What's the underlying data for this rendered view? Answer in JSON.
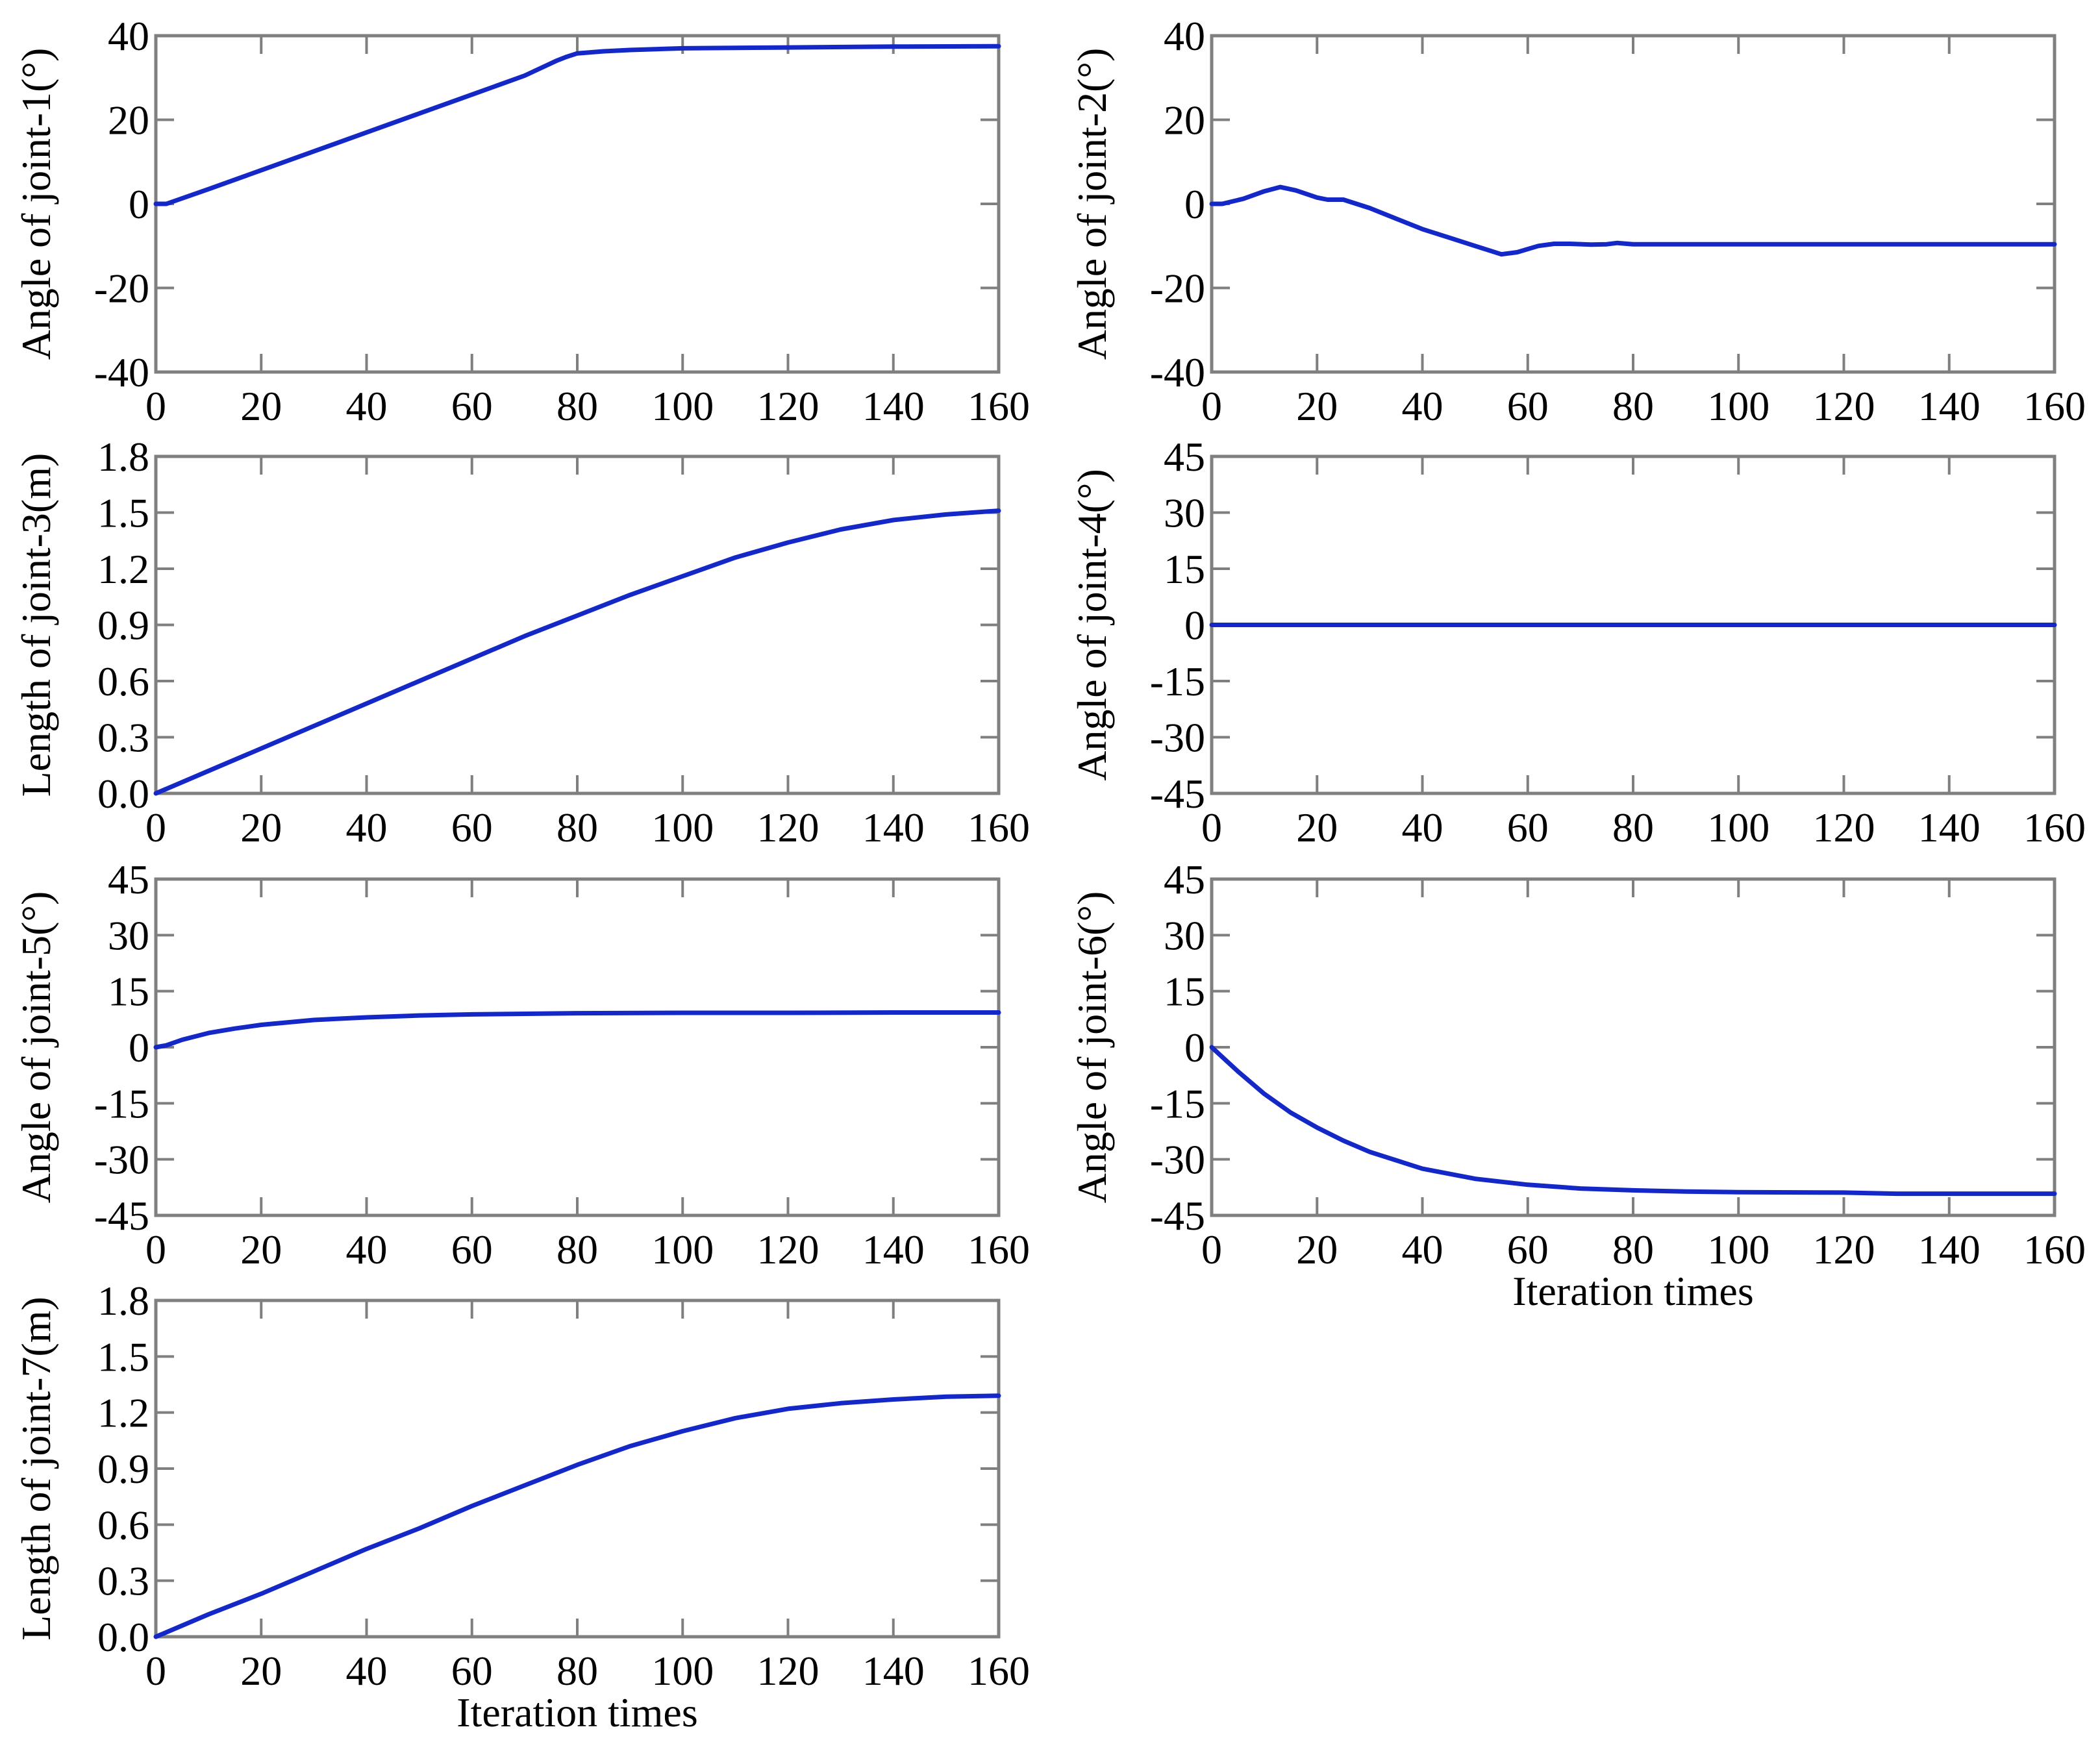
{
  "chart_data": [
    {
      "id": "joint-1",
      "type": "line",
      "ylabel": "Angle of joint-1(°)",
      "xlabel": "",
      "xlim": [
        0,
        160
      ],
      "ylim": [
        -40,
        40
      ],
      "xticks": [
        "0",
        "20",
        "40",
        "60",
        "80",
        "100",
        "120",
        "140",
        "160"
      ],
      "yticks": [
        "-40",
        "-20",
        "0",
        "20",
        "40"
      ],
      "color": "#1428c8",
      "series": [
        {
          "name": "joint-1",
          "x": [
            0,
            2,
            10,
            20,
            30,
            40,
            50,
            60,
            70,
            76,
            78,
            80,
            85,
            90,
            100,
            120,
            140,
            160
          ],
          "y": [
            0,
            0,
            3.5,
            8,
            12.5,
            17,
            21.5,
            26,
            30.5,
            34,
            35,
            35.8,
            36.3,
            36.6,
            37,
            37.2,
            37.4,
            37.5
          ]
        }
      ]
    },
    {
      "id": "joint-2",
      "type": "line",
      "ylabel": "Angle of joint-2(°)",
      "xlabel": "",
      "xlim": [
        0,
        160
      ],
      "ylim": [
        -40,
        40
      ],
      "xticks": [
        "0",
        "20",
        "40",
        "60",
        "80",
        "100",
        "120",
        "140",
        "160"
      ],
      "yticks": [
        "-40",
        "-20",
        "0",
        "20",
        "40"
      ],
      "color": "#1428c8",
      "series": [
        {
          "name": "joint-2",
          "x": [
            0,
            2,
            6,
            10,
            13,
            16,
            20,
            22,
            25,
            30,
            35,
            40,
            45,
            50,
            55,
            58,
            62,
            65,
            68,
            72,
            75,
            77,
            80,
            100,
            120,
            140,
            160
          ],
          "y": [
            0,
            0,
            1.2,
            3,
            4,
            3.2,
            1.5,
            1,
            1,
            -1,
            -3.5,
            -6,
            -8,
            -10,
            -12,
            -11.5,
            -10,
            -9.5,
            -9.5,
            -9.7,
            -9.6,
            -9.3,
            -9.6,
            -9.6,
            -9.6,
            -9.6,
            -9.6
          ]
        }
      ]
    },
    {
      "id": "joint-3",
      "type": "line",
      "ylabel": "Length of joint-3(m)",
      "xlabel": "",
      "xlim": [
        0,
        160
      ],
      "ylim": [
        0.0,
        1.8
      ],
      "xticks": [
        "0",
        "20",
        "40",
        "60",
        "80",
        "100",
        "120",
        "140",
        "160"
      ],
      "yticks": [
        "0.0",
        "0.3",
        "0.6",
        "0.9",
        "1.2",
        "1.5",
        "1.8"
      ],
      "color": "#1428c8",
      "series": [
        {
          "name": "joint-3",
          "x": [
            0,
            10,
            20,
            30,
            40,
            50,
            60,
            70,
            80,
            90,
            100,
            110,
            120,
            130,
            140,
            150,
            160
          ],
          "y": [
            0,
            0.12,
            0.24,
            0.36,
            0.48,
            0.6,
            0.72,
            0.84,
            0.95,
            1.06,
            1.16,
            1.26,
            1.34,
            1.41,
            1.46,
            1.49,
            1.51
          ]
        }
      ]
    },
    {
      "id": "joint-4",
      "type": "line",
      "ylabel": "Angle of joint-4(°)",
      "xlabel": "",
      "xlim": [
        0,
        160
      ],
      "ylim": [
        -45,
        45
      ],
      "xticks": [
        "0",
        "20",
        "40",
        "60",
        "80",
        "100",
        "120",
        "140",
        "160"
      ],
      "yticks": [
        "-45",
        "-30",
        "-15",
        "0",
        "15",
        "30",
        "45"
      ],
      "color": "#1428c8",
      "series": [
        {
          "name": "joint-4",
          "x": [
            0,
            160
          ],
          "y": [
            0,
            0
          ]
        }
      ]
    },
    {
      "id": "joint-5",
      "type": "line",
      "ylabel": "Angle of joint-5(°)",
      "xlabel": "",
      "xlim": [
        0,
        160
      ],
      "ylim": [
        -45,
        45
      ],
      "xticks": [
        "0",
        "20",
        "40",
        "60",
        "80",
        "100",
        "120",
        "140",
        "160"
      ],
      "yticks": [
        "-45",
        "-30",
        "-15",
        "0",
        "15",
        "30",
        "45"
      ],
      "color": "#1428c8",
      "series": [
        {
          "name": "joint-5",
          "x": [
            0,
            2,
            5,
            10,
            15,
            20,
            30,
            40,
            50,
            60,
            80,
            100,
            120,
            140,
            160
          ],
          "y": [
            0,
            0.5,
            2,
            3.8,
            5,
            6,
            7.3,
            8,
            8.5,
            8.8,
            9.1,
            9.2,
            9.2,
            9.3,
            9.3
          ]
        }
      ]
    },
    {
      "id": "joint-6",
      "type": "line",
      "ylabel": "Angle of joint-6(°)",
      "xlabel": "Iteration times",
      "xlim": [
        0,
        160
      ],
      "ylim": [
        -45,
        45
      ],
      "xticks": [
        "0",
        "20",
        "40",
        "60",
        "80",
        "100",
        "120",
        "140",
        "160"
      ],
      "yticks": [
        "-45",
        "-30",
        "-15",
        "0",
        "15",
        "30",
        "45"
      ],
      "color": "#1428c8",
      "series": [
        {
          "name": "joint-6",
          "x": [
            0,
            5,
            10,
            15,
            20,
            25,
            30,
            40,
            50,
            60,
            70,
            80,
            90,
            100,
            120,
            130,
            160
          ],
          "y": [
            0,
            -6.5,
            -12.5,
            -17.5,
            -21.5,
            -25,
            -28,
            -32.5,
            -35.2,
            -36.8,
            -37.8,
            -38.3,
            -38.6,
            -38.8,
            -38.9,
            -39.2,
            -39.2
          ]
        }
      ]
    },
    {
      "id": "joint-7",
      "type": "line",
      "ylabel": "Length of joint-7(m)",
      "xlabel": "Iteration times",
      "xlim": [
        0,
        160
      ],
      "ylim": [
        0.0,
        1.8
      ],
      "xticks": [
        "0",
        "20",
        "40",
        "60",
        "80",
        "100",
        "120",
        "140",
        "160"
      ],
      "yticks": [
        "0.0",
        "0.3",
        "0.6",
        "0.9",
        "1.2",
        "1.5",
        "1.8"
      ],
      "color": "#1428c8",
      "series": [
        {
          "name": "joint-7",
          "x": [
            0,
            10,
            20,
            30,
            40,
            50,
            60,
            70,
            80,
            90,
            100,
            110,
            120,
            130,
            140,
            150,
            160
          ],
          "y": [
            0,
            0.12,
            0.23,
            0.35,
            0.47,
            0.58,
            0.7,
            0.81,
            0.92,
            1.02,
            1.1,
            1.17,
            1.22,
            1.25,
            1.27,
            1.285,
            1.29
          ]
        }
      ]
    }
  ]
}
